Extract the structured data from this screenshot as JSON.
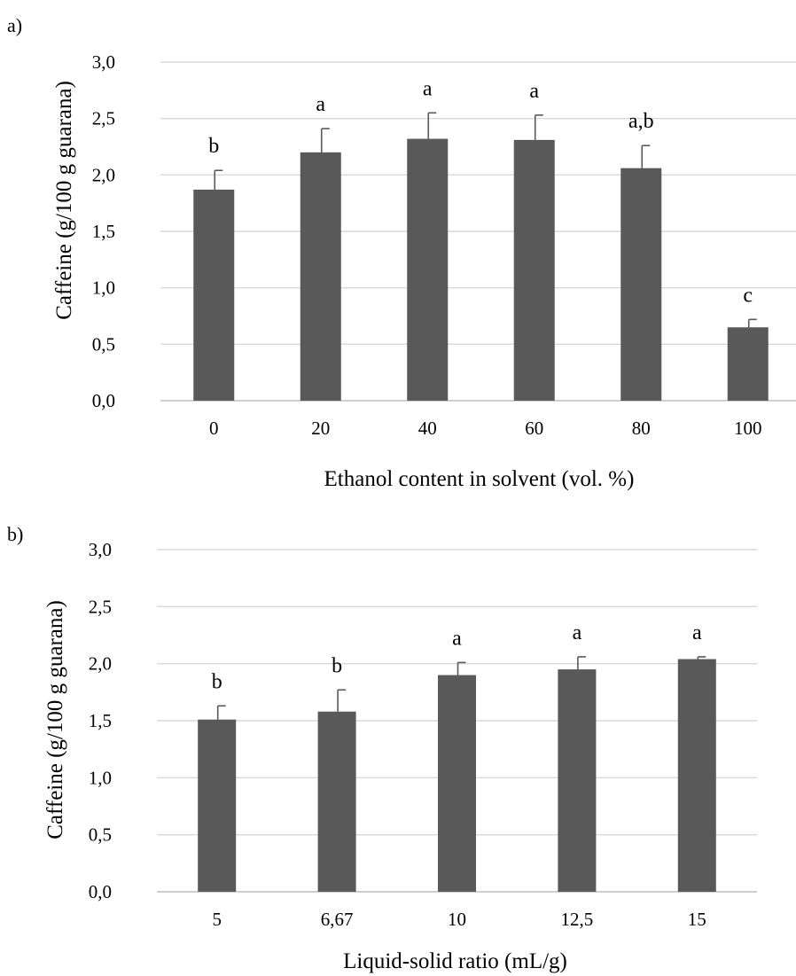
{
  "chart_data": [
    {
      "panel_label": "a)",
      "type": "bar",
      "categories": [
        "0",
        "20",
        "40",
        "60",
        "80",
        "100"
      ],
      "values": [
        1.87,
        2.2,
        2.32,
        2.31,
        2.06,
        0.65
      ],
      "errors": [
        0.17,
        0.21,
        0.23,
        0.22,
        0.2,
        0.07
      ],
      "significance": [
        "b",
        "a",
        "a",
        "a",
        "a,b",
        "c"
      ],
      "ylabel": "Caffeine  (g/100 g guarana)",
      "xlabel": "Ethanol content in solvent  (vol. %)",
      "ylim": [
        0,
        3
      ],
      "yticks": [
        "0,0",
        "0,5",
        "1,0",
        "1,5",
        "2,0",
        "2,5",
        "3,0"
      ],
      "grid": true,
      "bar_color": "#595959"
    },
    {
      "panel_label": "b)",
      "type": "bar",
      "categories": [
        "5",
        "6,67",
        "10",
        "12,5",
        "15"
      ],
      "values": [
        1.51,
        1.58,
        1.9,
        1.95,
        2.04
      ],
      "errors": [
        0.12,
        0.19,
        0.11,
        0.11,
        0.02
      ],
      "significance": [
        "b",
        "b",
        "a",
        "a",
        "a"
      ],
      "ylabel": "Caffeine  (g/100 g guarana)",
      "xlabel": "Liquid-solid ratio (mL/g)",
      "ylim": [
        0,
        3
      ],
      "yticks": [
        "0,0",
        "0,5",
        "1,0",
        "1,5",
        "2,0",
        "2,5",
        "3,0"
      ],
      "grid": true,
      "bar_color": "#595959"
    }
  ]
}
